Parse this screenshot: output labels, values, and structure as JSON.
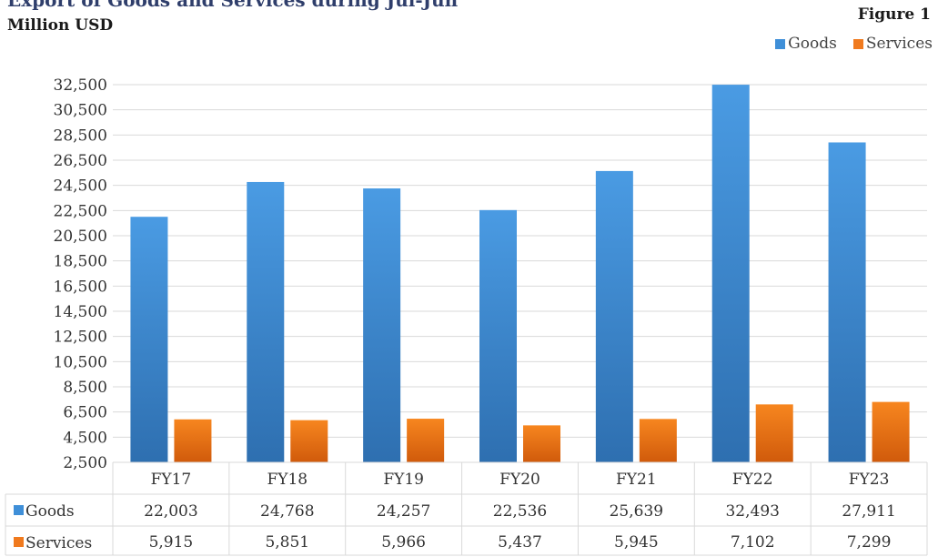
{
  "header": {
    "title": "Export of Goods and Services during Jul-Jun",
    "subtitle": "Million USD",
    "figure_label": "Figure 1"
  },
  "colors": {
    "goods": "#3f8fd8",
    "goods_dark": "#2e6fb0",
    "services": "#f07a1e",
    "services_dark": "#d05a0b",
    "grid": "#d9d9d9"
  },
  "chart_data": {
    "type": "bar",
    "categories": [
      "FY17",
      "FY18",
      "FY19",
      "FY20",
      "FY21",
      "FY22",
      "FY23"
    ],
    "series": [
      {
        "name": "Goods",
        "values": [
          22003,
          24768,
          24257,
          22536,
          25639,
          32493,
          27911
        ],
        "labels": [
          "22,003",
          "24,768",
          "24,257",
          "22,536",
          "25,639",
          "32,493",
          "27,911"
        ]
      },
      {
        "name": "Services",
        "values": [
          5915,
          5851,
          5966,
          5437,
          5945,
          7102,
          7299
        ],
        "labels": [
          "5,915",
          "5,851",
          "5,966",
          "5,437",
          "5,945",
          "7,102",
          "7,299"
        ]
      }
    ],
    "yticks": [
      "2,500",
      "4,500",
      "6,500",
      "8,500",
      "10,500",
      "12,500",
      "14,500",
      "16,500",
      "18,500",
      "20,500",
      "22,500",
      "24,500",
      "26,500",
      "28,500",
      "30,500",
      "32,500"
    ],
    "ylim": [
      2500,
      32500
    ],
    "grid": true,
    "legend_position": "top-right",
    "data_table": true
  }
}
